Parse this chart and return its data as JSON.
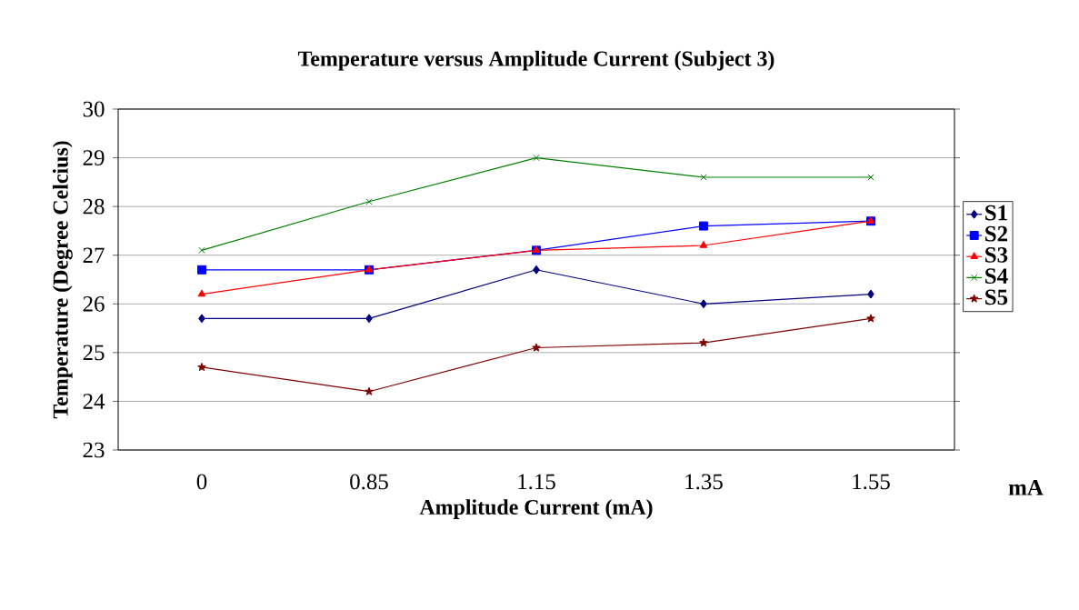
{
  "chart_data": {
    "type": "line",
    "title": "Temperature versus Amplitude Current (Subject 3)",
    "xlabel": "Amplitude Current (mA)",
    "ylabel": "Temperature (Degree Celcius)",
    "annotations": [
      "mA"
    ],
    "categories": [
      "0",
      "0.85",
      "1.15",
      "1.35",
      "1.55"
    ],
    "series": [
      {
        "name": "S1",
        "color": "#000080",
        "marker": "diamond",
        "values": [
          25.7,
          25.7,
          26.7,
          26.0,
          26.2
        ]
      },
      {
        "name": "S2",
        "color": "#0000ff",
        "marker": "square",
        "values": [
          26.7,
          26.7,
          27.1,
          27.6,
          27.7
        ]
      },
      {
        "name": "S3",
        "color": "#ff0000",
        "marker": "triangle",
        "values": [
          26.2,
          26.7,
          27.1,
          27.2,
          27.7
        ]
      },
      {
        "name": "S4",
        "color": "#008000",
        "marker": "cross",
        "values": [
          27.1,
          28.1,
          29.0,
          28.6,
          28.6
        ]
      },
      {
        "name": "S5",
        "color": "#800000",
        "marker": "star",
        "values": [
          24.7,
          24.2,
          25.1,
          25.2,
          25.7
        ]
      }
    ],
    "ylim": [
      23,
      30
    ],
    "yticks": [
      23,
      24,
      25,
      26,
      27,
      28,
      29,
      30
    ],
    "grid": "y",
    "legend": "right"
  }
}
